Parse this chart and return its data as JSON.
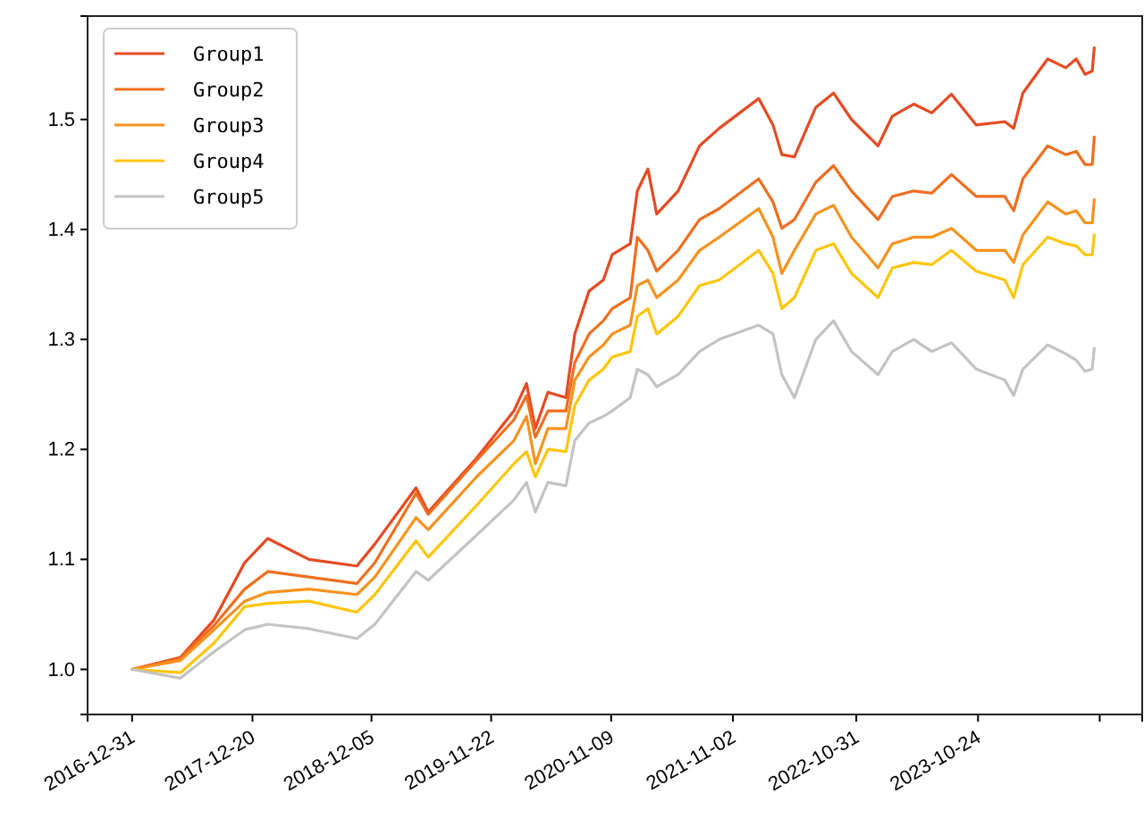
{
  "chart_data": {
    "type": "line",
    "x": [
      "2016-12-31",
      "2017-05-22",
      "2017-08-29",
      "2017-11-27",
      "2018-02-03",
      "2018-06-04",
      "2018-10-23",
      "2018-12-15",
      "2019-04-15",
      "2019-05-21",
      "2019-10-10",
      "2020-01-28",
      "2020-03-05",
      "2020-03-31",
      "2020-05-07",
      "2020-06-29",
      "2020-07-25",
      "2020-09-05",
      "2020-10-17",
      "2020-11-12",
      "2021-01-04",
      "2021-01-25",
      "2021-02-25",
      "2021-03-23",
      "2021-05-25",
      "2021-07-27",
      "2021-09-23",
      "2022-01-17",
      "2022-02-28",
      "2022-03-26",
      "2022-05-02",
      "2022-07-04",
      "2022-08-25",
      "2022-10-17",
      "2023-01-03",
      "2023-02-14",
      "2023-04-18",
      "2023-06-10",
      "2023-08-07",
      "2023-10-19",
      "2024-01-11",
      "2024-02-06",
      "2024-03-04",
      "2024-05-16",
      "2024-07-08",
      "2024-08-08",
      "2024-09-03",
      "2024-09-24",
      "2024-09-30"
    ],
    "series": [
      {
        "name": "Group1",
        "color": "#e64a24",
        "values": [
          1.0,
          1.011,
          1.045,
          1.097,
          1.119,
          1.1,
          1.094,
          1.114,
          1.165,
          1.143,
          1.192,
          1.235,
          1.26,
          1.219,
          1.252,
          1.247,
          1.305,
          1.344,
          1.354,
          1.377,
          1.387,
          1.435,
          1.455,
          1.414,
          1.435,
          1.476,
          1.492,
          1.519,
          1.495,
          1.468,
          1.466,
          1.511,
          1.524,
          1.5,
          1.476,
          1.503,
          1.514,
          1.506,
          1.523,
          1.495,
          1.498,
          1.492,
          1.524,
          1.555,
          1.547,
          1.555,
          1.541,
          1.544,
          1.565
        ]
      },
      {
        "name": "Group2",
        "color": "#f06e1e",
        "values": [
          1.0,
          1.01,
          1.04,
          1.073,
          1.089,
          1.084,
          1.078,
          1.097,
          1.16,
          1.141,
          1.19,
          1.227,
          1.249,
          1.211,
          1.235,
          1.235,
          1.279,
          1.305,
          1.317,
          1.328,
          1.338,
          1.393,
          1.381,
          1.362,
          1.381,
          1.409,
          1.419,
          1.446,
          1.425,
          1.401,
          1.409,
          1.443,
          1.458,
          1.435,
          1.409,
          1.43,
          1.435,
          1.433,
          1.45,
          1.43,
          1.43,
          1.417,
          1.446,
          1.476,
          1.468,
          1.471,
          1.459,
          1.459,
          1.484
        ]
      },
      {
        "name": "Group3",
        "color": "#f7921e",
        "values": [
          1.0,
          1.008,
          1.036,
          1.062,
          1.07,
          1.073,
          1.068,
          1.084,
          1.138,
          1.127,
          1.175,
          1.208,
          1.23,
          1.187,
          1.219,
          1.219,
          1.263,
          1.284,
          1.295,
          1.305,
          1.313,
          1.349,
          1.354,
          1.338,
          1.354,
          1.381,
          1.393,
          1.419,
          1.393,
          1.36,
          1.381,
          1.414,
          1.422,
          1.393,
          1.365,
          1.387,
          1.393,
          1.393,
          1.401,
          1.381,
          1.381,
          1.37,
          1.395,
          1.425,
          1.414,
          1.417,
          1.406,
          1.406,
          1.427
        ]
      },
      {
        "name": "Group4",
        "color": "#ffc50a",
        "values": [
          1.0,
          0.997,
          1.024,
          1.057,
          1.06,
          1.062,
          1.052,
          1.068,
          1.117,
          1.102,
          1.149,
          1.187,
          1.198,
          1.175,
          1.2,
          1.198,
          1.24,
          1.263,
          1.273,
          1.284,
          1.289,
          1.321,
          1.328,
          1.305,
          1.321,
          1.349,
          1.354,
          1.381,
          1.36,
          1.328,
          1.338,
          1.381,
          1.387,
          1.36,
          1.338,
          1.365,
          1.37,
          1.368,
          1.381,
          1.362,
          1.354,
          1.338,
          1.368,
          1.393,
          1.387,
          1.385,
          1.377,
          1.377,
          1.395
        ]
      },
      {
        "name": "Group5",
        "color": "#c3c3c3",
        "values": [
          1.0,
          0.992,
          1.016,
          1.036,
          1.041,
          1.037,
          1.028,
          1.041,
          1.089,
          1.081,
          1.122,
          1.154,
          1.17,
          1.143,
          1.17,
          1.167,
          1.208,
          1.224,
          1.23,
          1.235,
          1.247,
          1.273,
          1.268,
          1.257,
          1.268,
          1.289,
          1.3,
          1.313,
          1.305,
          1.268,
          1.247,
          1.3,
          1.317,
          1.289,
          1.268,
          1.289,
          1.3,
          1.289,
          1.297,
          1.273,
          1.263,
          1.249,
          1.273,
          1.295,
          1.287,
          1.281,
          1.271,
          1.273,
          1.292
        ]
      }
    ],
    "xlim": [
      "2016-08-22",
      "2025-02-18"
    ],
    "xticks": [
      {
        "value": "2016-12-31",
        "label": "2016-12-31"
      },
      {
        "value": "2017-12-20",
        "label": "2017-12-20"
      },
      {
        "value": "2018-12-05",
        "label": "2018-12-05"
      },
      {
        "value": "2019-11-22",
        "label": "2019-11-22"
      },
      {
        "value": "2020-11-09",
        "label": "2020-11-09"
      },
      {
        "value": "2021-11-02",
        "label": "2021-11-02"
      },
      {
        "value": "2022-10-31",
        "label": "2022-10-31"
      },
      {
        "value": "2023-10-24",
        "label": "2023-10-24"
      },
      {
        "value": "2024-10-16",
        "label": null
      }
    ],
    "ylim": [
      0.959,
      1.594
    ],
    "yticks": [
      {
        "value": 1.0,
        "label": "1.0"
      },
      {
        "value": 1.1,
        "label": "1.1"
      },
      {
        "value": 1.2,
        "label": "1.2"
      },
      {
        "value": 1.3,
        "label": "1.3"
      },
      {
        "value": 1.4,
        "label": "1.4"
      },
      {
        "value": 1.5,
        "label": "1.5"
      }
    ],
    "grid": false,
    "legend": "top left",
    "marker": "none",
    "line_style": "solid"
  }
}
